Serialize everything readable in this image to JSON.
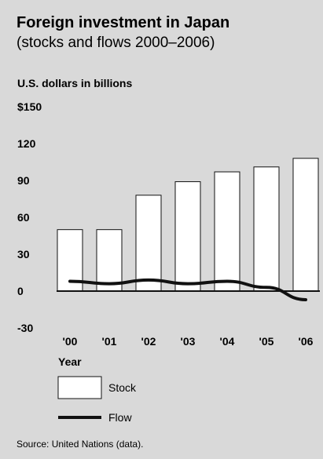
{
  "header": {
    "title": "Foreign investment in Japan",
    "subtitle": "(stocks and flows 2000–2006)"
  },
  "chart_data": {
    "type": "bar",
    "title": "Foreign investment in Japan",
    "subtitle": "(stocks and flows 2000–2006)",
    "ylabel": "U.S. dollars in billions",
    "xlabel": "Year",
    "categories": [
      "'00",
      "'01",
      "'02",
      "'03",
      "'04",
      "'05",
      "'06"
    ],
    "yticks": [
      "$150",
      "120",
      "90",
      "60",
      "30",
      "0",
      "-30"
    ],
    "ytick_values": [
      150,
      120,
      90,
      60,
      30,
      0,
      -30
    ],
    "ylim": [
      -30,
      150
    ],
    "grid": false,
    "legend_position": "bottom-left",
    "series": [
      {
        "name": "Stock",
        "type": "bar",
        "values": [
          50,
          50,
          78,
          89,
          97,
          101,
          108
        ],
        "color": "#ffffff"
      },
      {
        "name": "Flow",
        "type": "line",
        "values": [
          8,
          6,
          9,
          6,
          8,
          3,
          -7
        ],
        "color": "#111111"
      }
    ]
  },
  "footer": {
    "source": "Source: United Nations (data)."
  }
}
